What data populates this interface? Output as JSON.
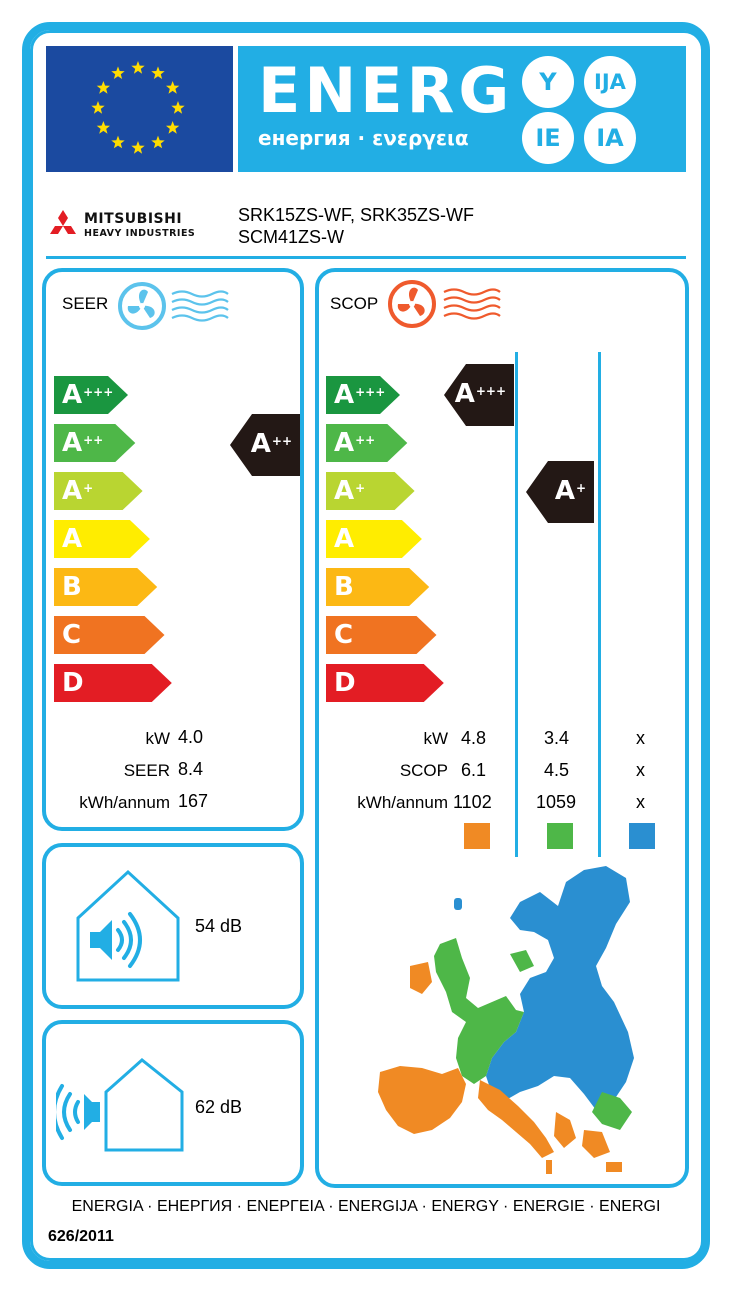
{
  "header": {
    "energy_word": "ENERG",
    "energy_sub": "енергия · ενεργεια",
    "suffixes": [
      "Y",
      "IJA",
      "IE",
      "IA"
    ],
    "colors": {
      "brand_blue": "#22aee4",
      "eu_blue": "#1b4aa0",
      "eu_star": "#ffdd00"
    }
  },
  "brand": {
    "name": "MITSUBISHI",
    "sub": "HEAVY INDUSTRIES",
    "model_line1": "SRK15ZS-WF, SRK35ZS-WF",
    "model_line2": "SCM41ZS-W"
  },
  "scale": {
    "classes": [
      {
        "letter": "A",
        "plus": "+++",
        "color": "#1a9640"
      },
      {
        "letter": "A",
        "plus": "++",
        "color": "#4eb748"
      },
      {
        "letter": "A",
        "plus": "+",
        "color": "#b9d531"
      },
      {
        "letter": "A",
        "plus": "",
        "color": "#ffed00"
      },
      {
        "letter": "B",
        "plus": "",
        "color": "#fcb814"
      },
      {
        "letter": "C",
        "plus": "",
        "color": "#f07321"
      },
      {
        "letter": "D",
        "plus": "",
        "color": "#e31d24"
      }
    ]
  },
  "seer": {
    "label": "SEER",
    "icon": "fan-cooling-icon",
    "rating": {
      "letter": "A",
      "plus": "++"
    },
    "rows": [
      {
        "label": "kW",
        "value": "4.0"
      },
      {
        "label": "SEER",
        "value": "8.4"
      },
      {
        "label": "kWh/annum",
        "value": "167"
      }
    ]
  },
  "scop": {
    "label": "SCOP",
    "icon": "fan-heating-icon",
    "zones": [
      {
        "name": "warmer",
        "color": "#f08a24",
        "rating": {
          "letter": "A",
          "plus": "+++"
        }
      },
      {
        "name": "average",
        "color": "#4eb748",
        "rating": {
          "letter": "A",
          "plus": "+"
        }
      },
      {
        "name": "colder",
        "color": "#2a8fd1",
        "rating": null
      }
    ],
    "row_labels": [
      "kW",
      "SCOP",
      "kWh/annum"
    ],
    "values": [
      [
        "4.8",
        "3.4",
        "x"
      ],
      [
        "6.1",
        "4.5",
        "x"
      ],
      [
        "1102",
        "1059",
        "x"
      ]
    ]
  },
  "noise": {
    "indoor": {
      "value": "54 dB",
      "icon": "indoor-speaker-icon"
    },
    "outdoor": {
      "value": "62 dB",
      "icon": "outdoor-speaker-icon"
    }
  },
  "footer": {
    "languages": "ENERGIA · ЕНЕРГИЯ · ΕΝΕΡΓΕΙΑ · ENERGIJA · ENERGY · ENERGIE · ENERGI",
    "regulation": "626/2011"
  }
}
